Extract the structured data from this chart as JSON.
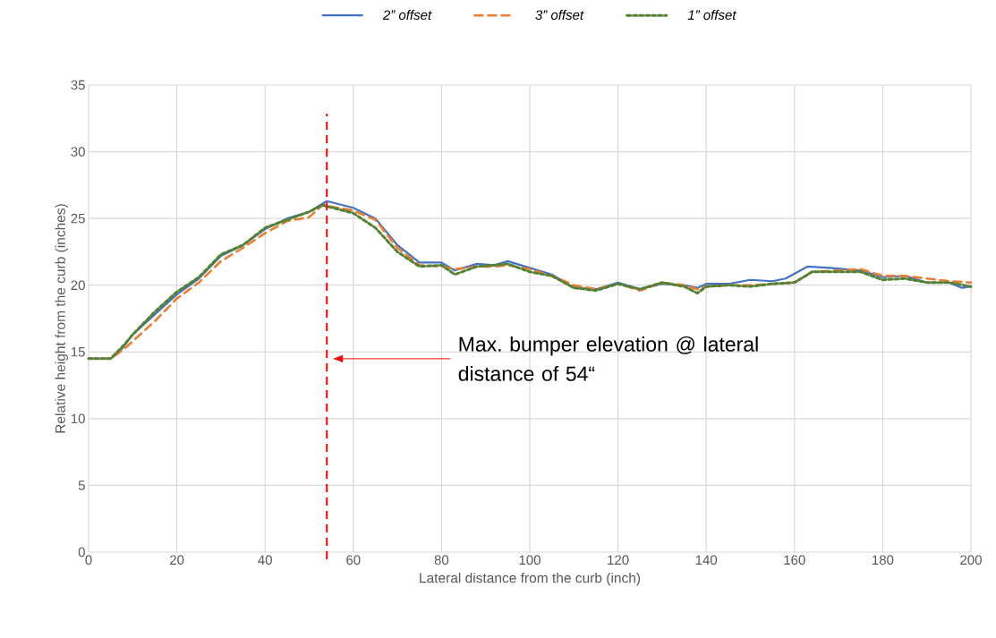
{
  "chart_data": {
    "type": "line",
    "xlabel": "Lateral distance from the curb (inch)",
    "ylabel": "Relative height from the curb (inches)",
    "xlim": [
      0,
      200
    ],
    "ylim": [
      0,
      35
    ],
    "xticks": [
      0,
      20,
      40,
      60,
      80,
      100,
      120,
      140,
      160,
      180,
      200
    ],
    "yticks": [
      0,
      5,
      10,
      15,
      20,
      25,
      30,
      35
    ],
    "grid": true,
    "legend": "top",
    "series": [
      {
        "name": "2” offset",
        "color": "#4472c4",
        "line_style": "solid",
        "x": [
          0,
          5,
          7,
          10,
          15,
          20,
          25,
          30,
          35,
          40,
          45,
          50,
          54,
          60,
          65,
          70,
          75,
          80,
          83,
          88,
          92,
          95,
          100,
          105,
          110,
          115,
          120,
          125,
          130,
          135,
          138,
          140,
          145,
          150,
          155,
          158,
          163,
          168,
          175,
          180,
          185,
          190,
          195,
          198,
          200
        ],
        "values": [
          14.5,
          14.5,
          15,
          16.3,
          17.8,
          19.3,
          20.5,
          22.2,
          23,
          24.2,
          25,
          25.5,
          26.3,
          25.8,
          25,
          23,
          21.7,
          21.7,
          21.1,
          21.6,
          21.5,
          21.8,
          21.3,
          20.8,
          19.8,
          19.7,
          20.2,
          19.7,
          20.1,
          20,
          19.8,
          20.1,
          20.1,
          20.4,
          20.3,
          20.5,
          21.4,
          21.3,
          21.1,
          20.6,
          20.7,
          20.2,
          20.2,
          19.8,
          19.9
        ]
      },
      {
        "name": "3” offset",
        "color": "#ed7d31",
        "line_style": "dashed",
        "x": [
          0,
          5,
          8,
          10,
          15,
          20,
          25,
          30,
          35,
          40,
          45,
          50,
          53,
          60,
          65,
          70,
          75,
          80,
          83,
          88,
          92,
          95,
          100,
          105,
          110,
          115,
          120,
          125,
          130,
          135,
          138,
          140,
          145,
          150,
          155,
          160,
          164,
          170,
          175,
          180,
          185,
          190,
          195,
          200
        ],
        "values": [
          14.5,
          14.5,
          15.2,
          15.8,
          17.3,
          19,
          20.2,
          21.8,
          22.8,
          23.9,
          24.8,
          25.1,
          26,
          25.6,
          24.9,
          22.8,
          21.5,
          21.4,
          21.2,
          21.4,
          21.4,
          21.5,
          21.2,
          20.7,
          20,
          19.7,
          20.1,
          19.6,
          20.2,
          20,
          19.7,
          19.9,
          20,
          20,
          20.1,
          20.2,
          21,
          21.1,
          21.2,
          20.7,
          20.7,
          20.5,
          20.3,
          20.2
        ]
      },
      {
        "name": "1” offset",
        "color": "#548235",
        "line_style": "dotted",
        "x": [
          0,
          5,
          8,
          10,
          15,
          20,
          25,
          30,
          35,
          40,
          45,
          50,
          53,
          60,
          65,
          70,
          75,
          80,
          83,
          88,
          92,
          95,
          100,
          105,
          110,
          115,
          120,
          125,
          130,
          135,
          138,
          140,
          145,
          150,
          155,
          160,
          164,
          170,
          175,
          180,
          185,
          190,
          195,
          200
        ],
        "values": [
          14.5,
          14.5,
          15.5,
          16.3,
          18,
          19.5,
          20.6,
          22.3,
          23,
          24.3,
          24.9,
          25.5,
          26,
          25.4,
          24.3,
          22.5,
          21.4,
          21.5,
          20.8,
          21.4,
          21.5,
          21.6,
          21,
          20.7,
          19.8,
          19.6,
          20.1,
          19.7,
          20.2,
          19.9,
          19.4,
          19.9,
          20,
          19.9,
          20.1,
          20.2,
          21,
          21,
          21,
          20.4,
          20.5,
          20.2,
          20.2,
          19.9
        ]
      }
    ],
    "ref_lines": [
      {
        "axis": "x",
        "value": 54,
        "color": "#ff0000",
        "line_style": "dashed"
      }
    ],
    "annotations": [
      "Max. bumper elevation @ lateral distance of 54“"
    ]
  }
}
